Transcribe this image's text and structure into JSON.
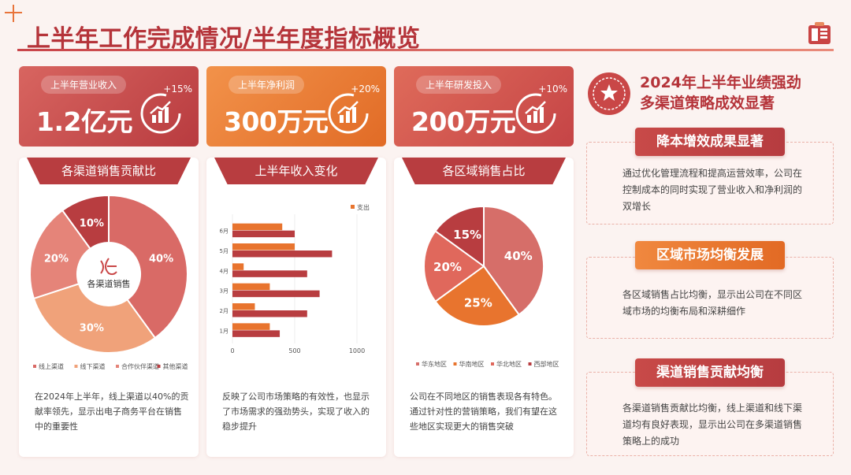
{
  "header": {
    "title": "上半年工作完成情况/半年度指标概览"
  },
  "kpis": [
    {
      "label": "上半年营业收入",
      "value": "1.2亿元",
      "growth": "+15%"
    },
    {
      "label": "上半年净利润",
      "value": "300万元",
      "growth": "+20%"
    },
    {
      "label": "上半年研发投入",
      "value": "200万元",
      "growth": "+10%"
    }
  ],
  "cards": [
    {
      "title": "各渠道销售贡献比",
      "text": "在2024年上半年，线上渠道以40%的贡献率领先，显示出电子商务平台在销售中的重要性"
    },
    {
      "title": "上半年收入变化",
      "text": "反映了公司市场策略的有效性，也显示了市场需求的强劲势头，实现了收入的稳步提升"
    },
    {
      "title": "各区域销售占比",
      "text": "公司在不同地区的销售表现各有特色。通过针对性的营销策略，我们有望在这些地区实现更大的销售突破"
    }
  ],
  "summary": {
    "line1": "2024年上半年业绩强劲",
    "line2": "多渠道策略成效显著"
  },
  "insights": [
    {
      "title": "降本增效成果显著",
      "text": "通过优化管理流程和提高运营效率，公司在控制成本的同时实现了营业收入和净利润的双增长"
    },
    {
      "title": "区域市场均衡发展",
      "text": "各区域销售占比均衡，显示出公司在不同区域市场的均衡布局和深耕细作"
    },
    {
      "title": "渠道销售贡献均衡",
      "text": "各渠道销售贡献比均衡，线上渠道和线下渠道均有良好表现，显示出公司在多渠道销售策略上的成功"
    }
  ],
  "colors": {
    "dark_red": "#b83d40",
    "red": "#d15150",
    "orange": "#e8742e",
    "light_orange": "#f0a27a",
    "salmon": "#e58479"
  },
  "chart_data": [
    {
      "type": "pie",
      "center_label": "各渠道销售",
      "categories": [
        "线上渠道",
        "线下渠道",
        "合作伙伴渠道",
        "其他渠道"
      ],
      "values": [
        40,
        30,
        20,
        10
      ],
      "labels": [
        "40%",
        "30%",
        "20%",
        "10%"
      ],
      "colors": [
        "#d96a66",
        "#f0a27a",
        "#e58479",
        "#b83d40"
      ],
      "legend": "bottom"
    },
    {
      "type": "bar",
      "orientation": "horizontal",
      "categories": [
        "1月",
        "2月",
        "3月",
        "4月",
        "5月",
        "6月"
      ],
      "series": [
        {
          "name": "",
          "values": [
            380,
            600,
            700,
            600,
            800,
            500
          ],
          "color": "#b83d40"
        },
        {
          "name": "支出",
          "values": [
            300,
            180,
            300,
            90,
            500,
            400
          ],
          "color": "#e8742e"
        }
      ],
      "xlim": [
        0,
        1000
      ],
      "xticks": [
        0,
        500,
        1000
      ],
      "legend": "top-right"
    },
    {
      "type": "pie",
      "categories": [
        "华东地区",
        "华南地区",
        "华北地区",
        "西部地区"
      ],
      "values": [
        40,
        25,
        20,
        15
      ],
      "labels": [
        "40%",
        "25%",
        "20%",
        "15%"
      ],
      "colors": [
        "#d66e69",
        "#e8742e",
        "#e0685c",
        "#b83d40"
      ],
      "legend": "bottom"
    }
  ]
}
